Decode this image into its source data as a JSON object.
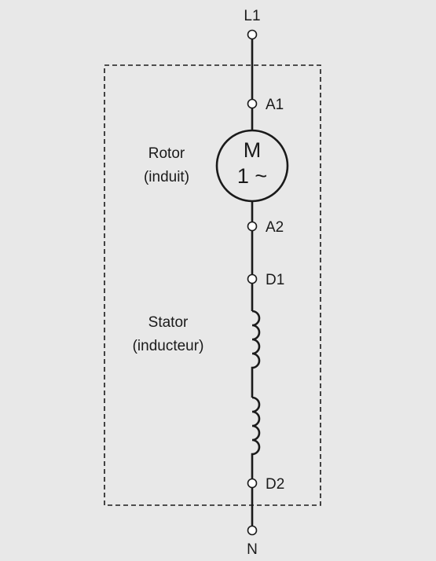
{
  "colors": {
    "background": "#e8e8e8",
    "line": "#1a1a1a",
    "terminal_fill": "#ffffff"
  },
  "terminals": {
    "top": "L1",
    "a1": "A1",
    "a2": "A2",
    "d1": "D1",
    "d2": "D2",
    "bottom": "N"
  },
  "motor": {
    "line1": "M",
    "line2": "1 ~"
  },
  "rotor": {
    "line1": "Rotor",
    "line2": "(induit)"
  },
  "stator": {
    "line1": "Stator",
    "line2": "(inducteur)"
  }
}
